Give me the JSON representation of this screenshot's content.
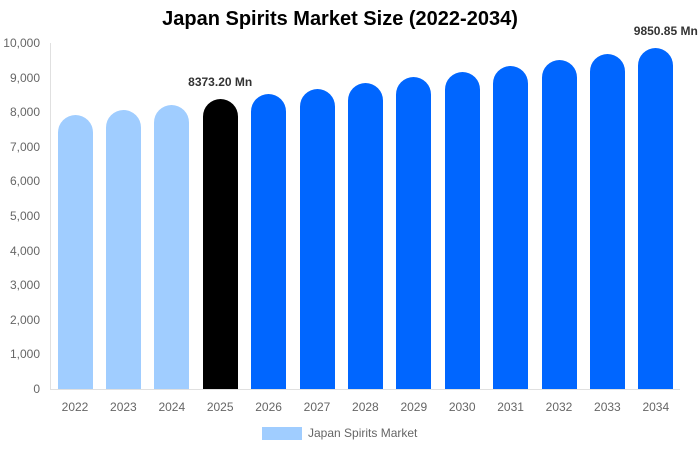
{
  "chart_data": {
    "type": "bar",
    "title": "Japan Spirits Market Size (2022-2034)",
    "xlabel": "",
    "ylabel": "",
    "ylim": [
      0,
      10000
    ],
    "yticks": [
      "0",
      "1,000",
      "2,000",
      "3,000",
      "4,000",
      "5,000",
      "6,000",
      "7,000",
      "8,000",
      "9,000",
      "10,000"
    ],
    "categories": [
      "2022",
      "2023",
      "2024",
      "2025",
      "2026",
      "2027",
      "2028",
      "2029",
      "2030",
      "2031",
      "2032",
      "2033",
      "2034"
    ],
    "series": [
      {
        "name": "Japan Spirits Market",
        "values": [
          7929,
          8074,
          8222,
          8373.2,
          8527,
          8683,
          8842,
          9004,
          9169,
          9337,
          9508,
          9673,
          9850.85
        ]
      }
    ],
    "bar_colors": [
      "#a0cdff",
      "#a0cdff",
      "#a0cdff",
      "#000000",
      "#0066ff",
      "#0066ff",
      "#0066ff",
      "#0066ff",
      "#0066ff",
      "#0066ff",
      "#0066ff",
      "#0066ff",
      "#0066ff"
    ],
    "annotations": [
      {
        "category": "2025",
        "text": "8373.20 Mn"
      },
      {
        "category": "2034",
        "text": "9850.85 Mn"
      }
    ],
    "grid": false,
    "legend_position": "bottom",
    "legend": [
      {
        "label": "Japan Spirits Market",
        "color": "#a0cdff"
      }
    ]
  }
}
